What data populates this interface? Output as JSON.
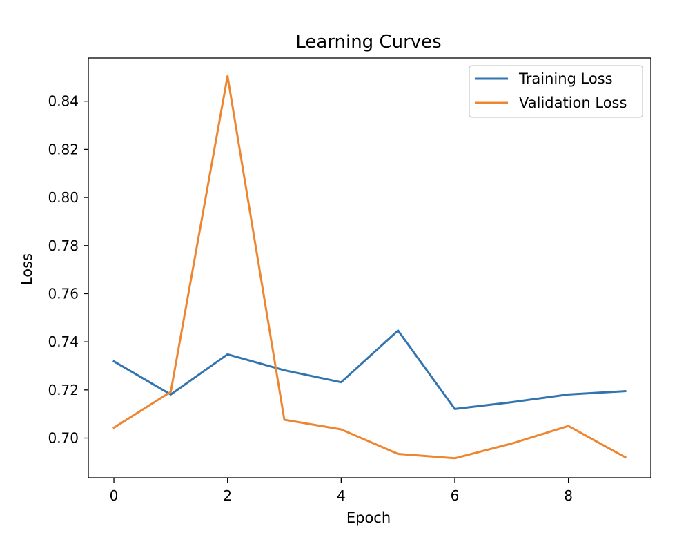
{
  "chart_data": {
    "type": "line",
    "title": "Learning Curves",
    "xlabel": "Epoch",
    "ylabel": "Loss",
    "xlim": [
      -0.45,
      9.45
    ],
    "ylim": [
      0.6835,
      0.858
    ],
    "x": [
      0,
      1,
      2,
      3,
      4,
      5,
      6,
      7,
      8,
      9
    ],
    "xticks": [
      0,
      2,
      4,
      6,
      8
    ],
    "yticks": [
      0.7,
      0.72,
      0.74,
      0.76,
      0.78,
      0.8,
      0.82,
      0.84
    ],
    "ytick_labels": [
      "0.70",
      "0.72",
      "0.74",
      "0.76",
      "0.78",
      "0.80",
      "0.82",
      "0.84"
    ],
    "grid": false,
    "legend_position": "top-right",
    "series": [
      {
        "name": "Training Loss",
        "color": "#3274b0",
        "values": [
          0.7319,
          0.7181,
          0.7348,
          0.7282,
          0.7232,
          0.7447,
          0.7121,
          0.7149,
          0.7181,
          0.7195
        ]
      },
      {
        "name": "Validation Loss",
        "color": "#ee8531",
        "values": [
          0.7043,
          0.7192,
          0.8505,
          0.7076,
          0.7036,
          0.6934,
          0.6916,
          0.6977,
          0.705,
          0.692
        ]
      }
    ]
  }
}
